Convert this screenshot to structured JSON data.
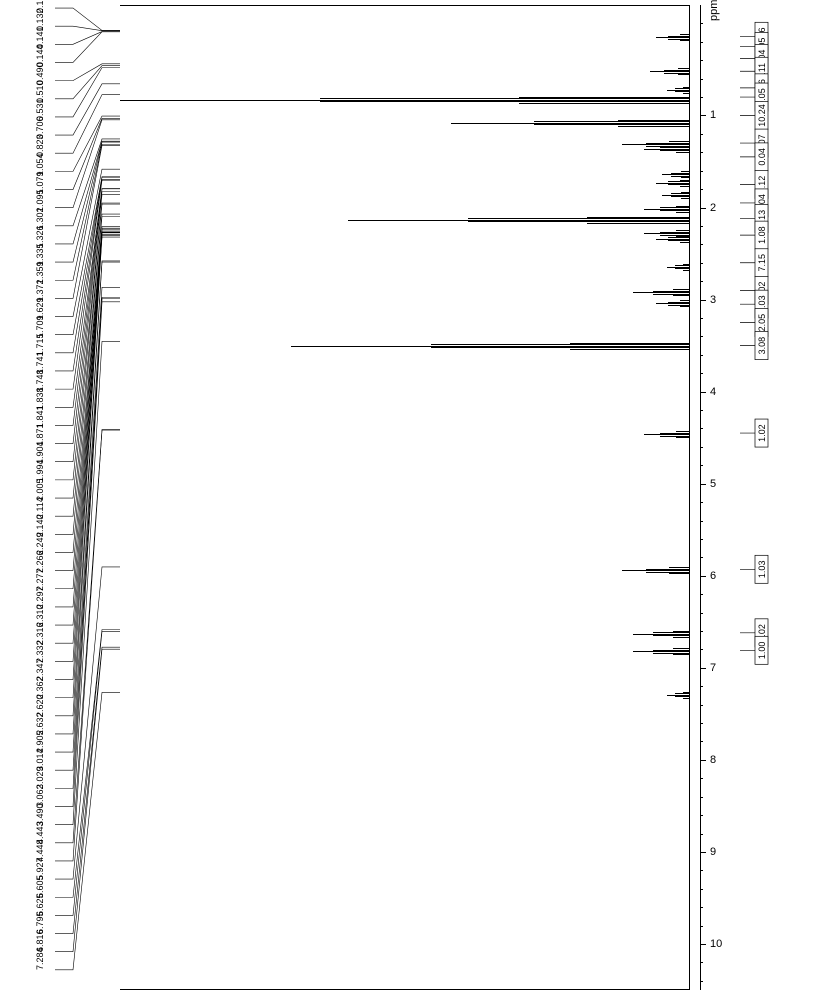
{
  "chart": {
    "type": "nmr-spectrum",
    "background_color": "#ffffff",
    "line_color": "#000000",
    "text_color": "#000000",
    "axis": {
      "label": "ppm",
      "min": -0.2,
      "max": 10.5,
      "major_ticks": [
        1,
        2,
        3,
        4,
        5,
        6,
        7,
        8,
        9,
        10
      ],
      "minor_step": 0.2,
      "label_fontsize": 11
    },
    "peak_list": [
      "0.129",
      "0.132",
      "0.141",
      "0.144",
      "0.490",
      "0.510",
      "0.531",
      "0.706",
      "0.823",
      "1.054",
      "1.079",
      "1.095",
      "1.302",
      "1.326",
      "1.335",
      "1.359",
      "1.372",
      "1.629",
      "1.709",
      "1.715",
      "1.741",
      "1.748",
      "1.838",
      "1.841",
      "1.871",
      "1.904",
      "1.994",
      "2.005",
      "2.114",
      "2.140",
      "2.249",
      "2.266",
      "2.277",
      "2.297",
      "2.310",
      "2.316",
      "2.332",
      "2.347",
      "2.362",
      "2.620",
      "2.632",
      "2.905",
      "3.014",
      "3.029",
      "3.062",
      "3.490",
      "4.443",
      "4.448",
      "5.927",
      "6.605",
      "6.625",
      "6.795",
      "6.816",
      "7.284"
    ],
    "peak_label_fontsize": 9,
    "spectrum_peaks": [
      {
        "ppm": 0.14,
        "intensity": 0.06
      },
      {
        "ppm": 0.51,
        "intensity": 0.07
      },
      {
        "ppm": 0.71,
        "intensity": 0.04
      },
      {
        "ppm": 0.82,
        "intensity": 1.0
      },
      {
        "ppm": 1.07,
        "intensity": 0.42
      },
      {
        "ppm": 1.3,
        "intensity": 0.12
      },
      {
        "ppm": 1.35,
        "intensity": 0.08
      },
      {
        "ppm": 1.63,
        "intensity": 0.05
      },
      {
        "ppm": 1.72,
        "intensity": 0.06
      },
      {
        "ppm": 1.85,
        "intensity": 0.05
      },
      {
        "ppm": 2.0,
        "intensity": 0.08
      },
      {
        "ppm": 2.12,
        "intensity": 0.6
      },
      {
        "ppm": 2.27,
        "intensity": 0.08
      },
      {
        "ppm": 2.33,
        "intensity": 0.06
      },
      {
        "ppm": 2.63,
        "intensity": 0.04
      },
      {
        "ppm": 2.91,
        "intensity": 0.1
      },
      {
        "ppm": 3.03,
        "intensity": 0.06
      },
      {
        "ppm": 3.49,
        "intensity": 0.7
      },
      {
        "ppm": 4.45,
        "intensity": 0.08
      },
      {
        "ppm": 5.93,
        "intensity": 0.12
      },
      {
        "ppm": 6.62,
        "intensity": 0.1
      },
      {
        "ppm": 6.81,
        "intensity": 0.1
      },
      {
        "ppm": 7.28,
        "intensity": 0.04
      }
    ],
    "integrals": [
      {
        "ppm": 0.14,
        "value": "2.06"
      },
      {
        "ppm": 0.25,
        "value": "2.05"
      },
      {
        "ppm": 0.38,
        "value": "1.04"
      },
      {
        "ppm": 0.52,
        "value": "1.11"
      },
      {
        "ppm": 0.7,
        "value": "0.06"
      },
      {
        "ppm": 0.8,
        "value": "0.05"
      },
      {
        "ppm": 1.0,
        "value": "10.24"
      },
      {
        "ppm": 1.3,
        "value": "0.07"
      },
      {
        "ppm": 1.45,
        "value": "0.04"
      },
      {
        "ppm": 1.75,
        "value": "4.12"
      },
      {
        "ppm": 1.95,
        "value": "1.04"
      },
      {
        "ppm": 2.12,
        "value": "3.13"
      },
      {
        "ppm": 2.3,
        "value": "1.08"
      },
      {
        "ppm": 2.6,
        "value": "7.15"
      },
      {
        "ppm": 2.9,
        "value": "1.02"
      },
      {
        "ppm": 3.05,
        "value": "1.03"
      },
      {
        "ppm": 3.25,
        "value": "2.05"
      },
      {
        "ppm": 3.5,
        "value": "3.08"
      },
      {
        "ppm": 4.45,
        "value": "1.02"
      },
      {
        "ppm": 5.93,
        "value": "1.03"
      },
      {
        "ppm": 6.62,
        "value": "1.02"
      },
      {
        "ppm": 6.81,
        "value": "1.00"
      }
    ],
    "integral_fontsize": 9
  }
}
